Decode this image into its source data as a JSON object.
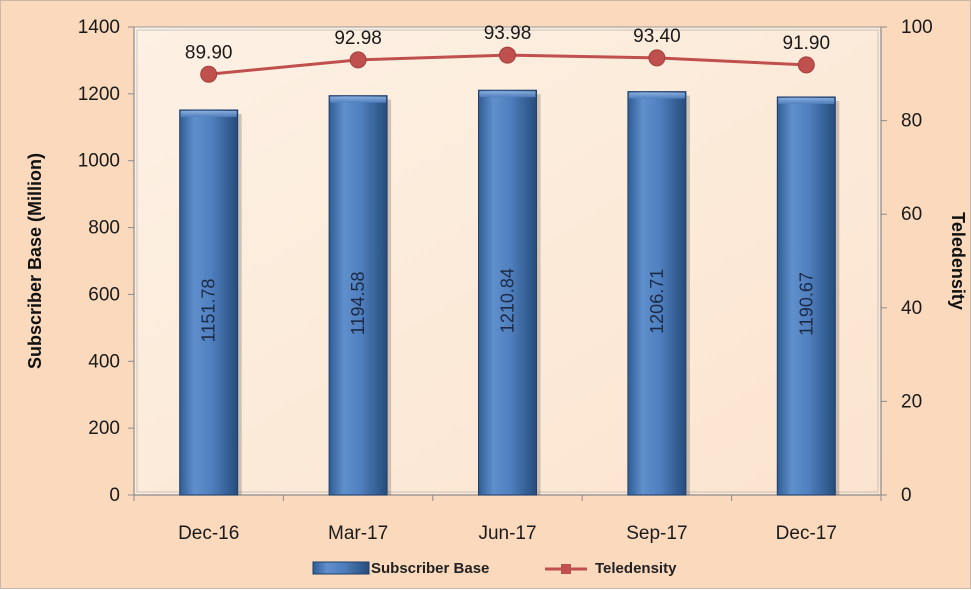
{
  "chart_data": {
    "type": "bar+line",
    "categories": [
      "Dec-16",
      "Mar-17",
      "Jun-17",
      "Sep-17",
      "Dec-17"
    ],
    "series": [
      {
        "name": "Subscriber Base",
        "type": "bar",
        "axis": "left",
        "values": [
          1151.78,
          1194.58,
          1210.84,
          1206.71,
          1190.67
        ],
        "labels": [
          "1151.78",
          "1194.58",
          "1210.84",
          "1206.71",
          "1190.67"
        ],
        "color": "#4f81bd"
      },
      {
        "name": "Teledensity",
        "type": "line",
        "axis": "right",
        "values": [
          89.9,
          92.98,
          93.98,
          93.4,
          91.9
        ],
        "labels": [
          "89.90",
          "92.98",
          "93.98",
          "93.40",
          "91.90"
        ],
        "color": "#c0504d"
      }
    ],
    "ylabel": "Subscriber Base (Million)",
    "y2label": "Teledensity",
    "ylim": [
      0,
      1400
    ],
    "yticks": [
      0,
      200,
      400,
      600,
      800,
      1000,
      1200,
      1400
    ],
    "y2lim": [
      0,
      100
    ],
    "y2ticks": [
      0,
      20,
      40,
      60,
      80,
      100
    ],
    "grid": false,
    "legend": "bottom"
  }
}
